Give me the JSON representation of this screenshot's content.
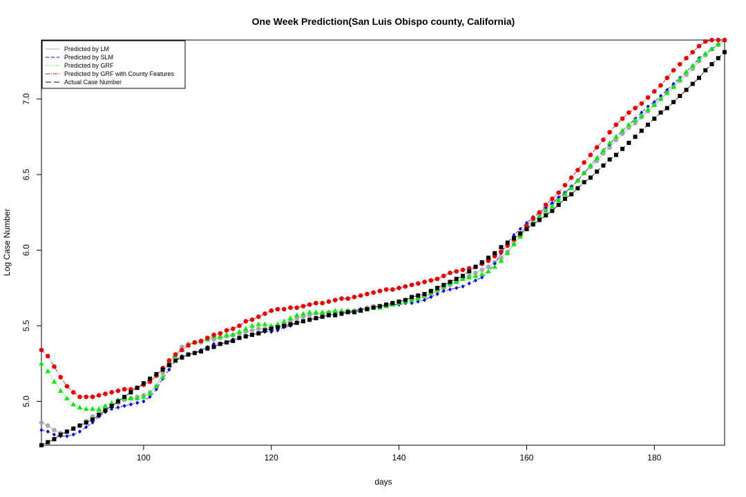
{
  "chart_data": {
    "type": "scatter",
    "title": "One Week Prediction(San Luis Obispo county, California)",
    "xlabel": "days",
    "ylabel": "Log Case Number",
    "xlim": [
      84,
      191
    ],
    "ylim": [
      4.71,
      7.39
    ],
    "xticks": [
      100,
      120,
      140,
      160,
      180
    ],
    "yticks": [
      5.0,
      5.5,
      6.0,
      6.5,
      7.0
    ],
    "legend_position": "top-left",
    "x": [
      84,
      85,
      86,
      87,
      88,
      89,
      90,
      91,
      92,
      93,
      94,
      95,
      96,
      97,
      98,
      99,
      100,
      101,
      102,
      103,
      104,
      105,
      106,
      107,
      108,
      109,
      110,
      111,
      112,
      113,
      114,
      115,
      116,
      117,
      118,
      119,
      120,
      121,
      122,
      123,
      124,
      125,
      126,
      127,
      128,
      129,
      130,
      131,
      132,
      133,
      134,
      135,
      136,
      137,
      138,
      139,
      140,
      141,
      142,
      143,
      144,
      145,
      146,
      147,
      148,
      149,
      150,
      151,
      152,
      153,
      154,
      155,
      156,
      157,
      158,
      159,
      160,
      161,
      162,
      163,
      164,
      165,
      166,
      167,
      168,
      169,
      170,
      171,
      172,
      173,
      174,
      175,
      176,
      177,
      178,
      179,
      180,
      181,
      182,
      183,
      184,
      185,
      186,
      187,
      188,
      189,
      190,
      191
    ],
    "series": [
      {
        "name": "Predicted by LM",
        "color": "#a8a8a8",
        "marker": "circle",
        "values": [
          4.86,
          4.84,
          4.81,
          4.79,
          4.8,
          4.82,
          4.84,
          4.87,
          4.9,
          4.93,
          4.95,
          4.97,
          4.99,
          5.01,
          5.02,
          5.03,
          5.04,
          5.06,
          5.1,
          5.19,
          5.26,
          5.31,
          5.36,
          5.38,
          5.39,
          5.39,
          5.41,
          5.41,
          5.42,
          5.43,
          5.44,
          5.45,
          5.46,
          5.47,
          5.48,
          5.48,
          5.49,
          5.5,
          5.51,
          5.53,
          5.55,
          5.56,
          5.57,
          5.58,
          5.58,
          5.59,
          5.59,
          5.59,
          5.6,
          5.6,
          5.61,
          5.62,
          5.63,
          5.63,
          5.64,
          5.65,
          5.66,
          5.67,
          5.67,
          5.68,
          5.69,
          5.71,
          5.73,
          5.75,
          5.77,
          5.79,
          5.81,
          5.83,
          5.85,
          5.87,
          5.89,
          5.92,
          5.95,
          5.99,
          6.04,
          6.09,
          6.14,
          6.19,
          6.23,
          6.27,
          6.31,
          6.34,
          6.38,
          6.42,
          6.46,
          6.51,
          6.55,
          6.59,
          6.64,
          6.68,
          6.73,
          6.77,
          6.81,
          6.84,
          6.88,
          6.92,
          6.96,
          7.0,
          7.04,
          7.08,
          7.12,
          7.16,
          7.2,
          7.25,
          7.29,
          7.33,
          7.36,
          7.39
        ]
      },
      {
        "name": "Predicted by SLM",
        "color": "#0000ee",
        "marker": "diamond",
        "values": [
          4.81,
          4.8,
          4.78,
          4.77,
          4.77,
          4.78,
          4.8,
          4.83,
          4.86,
          4.9,
          4.93,
          4.95,
          4.96,
          4.97,
          4.98,
          4.99,
          5.0,
          5.03,
          5.08,
          5.15,
          5.21,
          5.27,
          5.3,
          5.31,
          5.32,
          5.34,
          5.36,
          5.38,
          5.38,
          5.39,
          5.41,
          5.42,
          5.43,
          5.44,
          5.45,
          5.46,
          5.46,
          5.47,
          5.49,
          5.5,
          5.52,
          5.53,
          5.54,
          5.55,
          5.56,
          5.57,
          5.58,
          5.59,
          5.59,
          5.6,
          5.61,
          5.61,
          5.62,
          5.62,
          5.63,
          5.64,
          5.64,
          5.65,
          5.65,
          5.66,
          5.67,
          5.69,
          5.71,
          5.73,
          5.74,
          5.75,
          5.76,
          5.78,
          5.8,
          5.82,
          5.86,
          5.91,
          5.98,
          6.05,
          6.1,
          6.14,
          6.18,
          6.22,
          6.25,
          6.28,
          6.31,
          6.35,
          6.38,
          6.42,
          6.46,
          6.51,
          6.56,
          6.61,
          6.66,
          6.7,
          6.75,
          6.79,
          6.83,
          6.87,
          6.91,
          6.95,
          6.98,
          7.02,
          7.06,
          7.1,
          7.14,
          7.18,
          7.22,
          7.27,
          7.3,
          7.33,
          7.36,
          7.39
        ]
      },
      {
        "name": "Predicted by GRF",
        "color": "#00ee00",
        "marker": "triangle",
        "values": [
          5.25,
          5.2,
          5.13,
          5.07,
          5.02,
          4.98,
          4.96,
          4.95,
          4.95,
          4.95,
          4.97,
          4.99,
          5.01,
          5.02,
          5.02,
          5.02,
          5.03,
          5.05,
          5.1,
          5.16,
          5.24,
          5.3,
          5.34,
          5.37,
          5.39,
          5.4,
          5.41,
          5.43,
          5.43,
          5.44,
          5.44,
          5.46,
          5.48,
          5.5,
          5.51,
          5.51,
          5.5,
          5.51,
          5.53,
          5.55,
          5.57,
          5.58,
          5.59,
          5.59,
          5.59,
          5.59,
          5.6,
          5.6,
          5.6,
          5.6,
          5.6,
          5.61,
          5.62,
          5.62,
          5.63,
          5.64,
          5.65,
          5.66,
          5.67,
          5.68,
          5.7,
          5.72,
          5.74,
          5.76,
          5.78,
          5.79,
          5.81,
          5.82,
          5.83,
          5.84,
          5.86,
          5.89,
          5.93,
          5.98,
          6.04,
          6.09,
          6.14,
          6.18,
          6.22,
          6.26,
          6.29,
          6.33,
          6.37,
          6.41,
          6.46,
          6.51,
          6.56,
          6.61,
          6.66,
          6.71,
          6.75,
          6.79,
          6.83,
          6.86,
          6.89,
          6.93,
          6.96,
          7.0,
          7.04,
          7.08,
          7.13,
          7.18,
          7.22,
          7.26,
          7.3,
          7.33,
          7.36,
          7.39
        ]
      },
      {
        "name": "Predicted by GRF with County Features",
        "color": "#ee0000",
        "marker": "circle",
        "values": [
          5.34,
          5.3,
          5.23,
          5.16,
          5.1,
          5.06,
          5.03,
          5.03,
          5.03,
          5.04,
          5.05,
          5.06,
          5.07,
          5.08,
          5.08,
          5.09,
          5.11,
          5.13,
          5.17,
          5.22,
          5.27,
          5.31,
          5.34,
          5.37,
          5.39,
          5.4,
          5.42,
          5.44,
          5.45,
          5.47,
          5.48,
          5.5,
          5.53,
          5.54,
          5.56,
          5.58,
          5.6,
          5.61,
          5.61,
          5.62,
          5.62,
          5.63,
          5.64,
          5.65,
          5.65,
          5.66,
          5.67,
          5.68,
          5.68,
          5.69,
          5.7,
          5.71,
          5.72,
          5.73,
          5.74,
          5.74,
          5.75,
          5.76,
          5.77,
          5.78,
          5.79,
          5.8,
          5.81,
          5.83,
          5.85,
          5.86,
          5.87,
          5.88,
          5.89,
          5.91,
          5.93,
          5.96,
          5.99,
          6.03,
          6.07,
          6.11,
          6.16,
          6.21,
          6.25,
          6.3,
          6.34,
          6.38,
          6.43,
          6.48,
          6.53,
          6.58,
          6.63,
          6.68,
          6.73,
          6.78,
          6.83,
          6.87,
          6.91,
          6.94,
          6.97,
          7.01,
          7.05,
          7.09,
          7.14,
          7.19,
          7.23,
          7.27,
          7.31,
          7.35,
          7.38,
          7.39,
          7.39,
          7.39
        ]
      },
      {
        "name": "Actual Case Number",
        "color": "#000000",
        "marker": "square",
        "values": [
          4.71,
          4.73,
          4.75,
          4.78,
          4.8,
          4.82,
          4.84,
          4.86,
          4.88,
          4.91,
          4.94,
          4.97,
          5.0,
          5.03,
          5.06,
          5.09,
          5.12,
          5.15,
          5.18,
          5.21,
          5.24,
          5.27,
          5.29,
          5.31,
          5.32,
          5.33,
          5.35,
          5.36,
          5.38,
          5.39,
          5.4,
          5.42,
          5.43,
          5.44,
          5.45,
          5.47,
          5.48,
          5.49,
          5.5,
          5.51,
          5.52,
          5.53,
          5.54,
          5.55,
          5.56,
          5.57,
          5.57,
          5.58,
          5.59,
          5.59,
          5.6,
          5.61,
          5.62,
          5.63,
          5.64,
          5.65,
          5.66,
          5.67,
          5.69,
          5.7,
          5.71,
          5.73,
          5.75,
          5.77,
          5.79,
          5.81,
          5.83,
          5.86,
          5.89,
          5.92,
          5.95,
          5.98,
          6.02,
          6.05,
          6.08,
          6.11,
          6.14,
          6.17,
          6.2,
          6.23,
          6.26,
          6.3,
          6.34,
          6.37,
          6.41,
          6.45,
          6.48,
          6.52,
          6.56,
          6.6,
          6.63,
          6.67,
          6.71,
          6.75,
          6.79,
          6.83,
          6.87,
          6.91,
          6.94,
          6.98,
          7.02,
          7.06,
          7.1,
          7.14,
          7.19,
          7.23,
          7.27,
          7.31
        ]
      }
    ]
  }
}
